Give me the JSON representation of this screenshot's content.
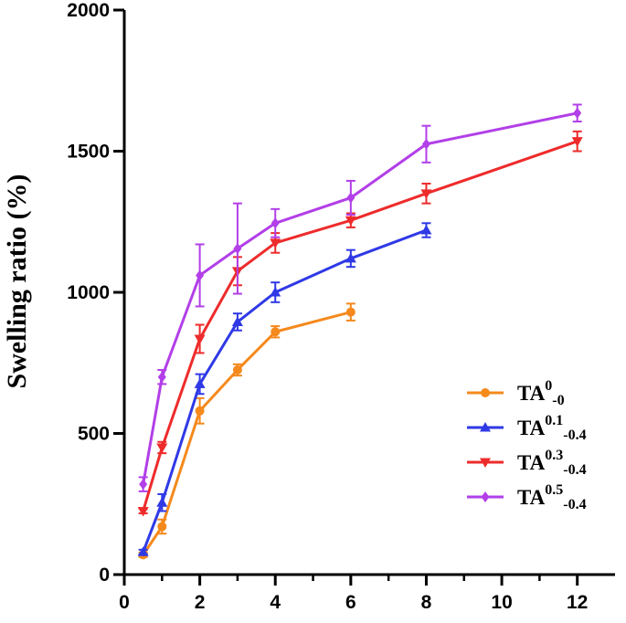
{
  "chart_data": {
    "type": "line",
    "title": "",
    "xlabel": "",
    "ylabel": "Swelling ratio (%)",
    "xlim": [
      0,
      13
    ],
    "ylim": [
      0,
      2000
    ],
    "x_ticks": [
      "0",
      "2",
      "4",
      "6",
      "8",
      "10",
      "12"
    ],
    "y_ticks": [
      "0",
      "500",
      "1000",
      "1500",
      "2000"
    ],
    "legend_position": "bottom-right",
    "series": [
      {
        "name": "TA0-0",
        "label_main": "TA",
        "label_sup": "0",
        "label_sub": "-0",
        "color": "#f5891c",
        "marker": "circle",
        "x": [
          0.5,
          1,
          2,
          3,
          4,
          6
        ],
        "y": [
          70,
          170,
          580,
          725,
          860,
          930
        ],
        "err": [
          8,
          25,
          45,
          20,
          20,
          30
        ]
      },
      {
        "name": "TA0.1-0.4",
        "label_main": "TA",
        "label_sup": "0.1",
        "label_sub": "-0.4",
        "color": "#2f39e6",
        "marker": "triangle-up",
        "x": [
          0.5,
          1,
          2,
          3,
          4,
          6,
          8
        ],
        "y": [
          80,
          255,
          675,
          895,
          1000,
          1120,
          1220
        ],
        "err": [
          8,
          30,
          35,
          30,
          35,
          30,
          25
        ]
      },
      {
        "name": "TA0.3-0.4",
        "label_main": "TA",
        "label_sup": "0.3",
        "label_sub": "-0.4",
        "color": "#ee2b2b",
        "marker": "triangle-down",
        "x": [
          0.5,
          1,
          2,
          3,
          4,
          6,
          8,
          12
        ],
        "y": [
          225,
          450,
          835,
          1075,
          1175,
          1255,
          1350,
          1535
        ],
        "err": [
          8,
          20,
          50,
          50,
          35,
          25,
          35,
          35
        ]
      },
      {
        "name": "TA0.5-0.4",
        "label_main": "TA",
        "label_sup": "0.5",
        "label_sub": "-0.4",
        "color": "#b23fe8",
        "marker": "diamond",
        "x": [
          0.5,
          1,
          2,
          3,
          4,
          6,
          8,
          12
        ],
        "y": [
          320,
          700,
          1060,
          1155,
          1245,
          1335,
          1525,
          1635
        ],
        "err": [
          25,
          25,
          110,
          160,
          50,
          60,
          65,
          30
        ]
      }
    ]
  }
}
